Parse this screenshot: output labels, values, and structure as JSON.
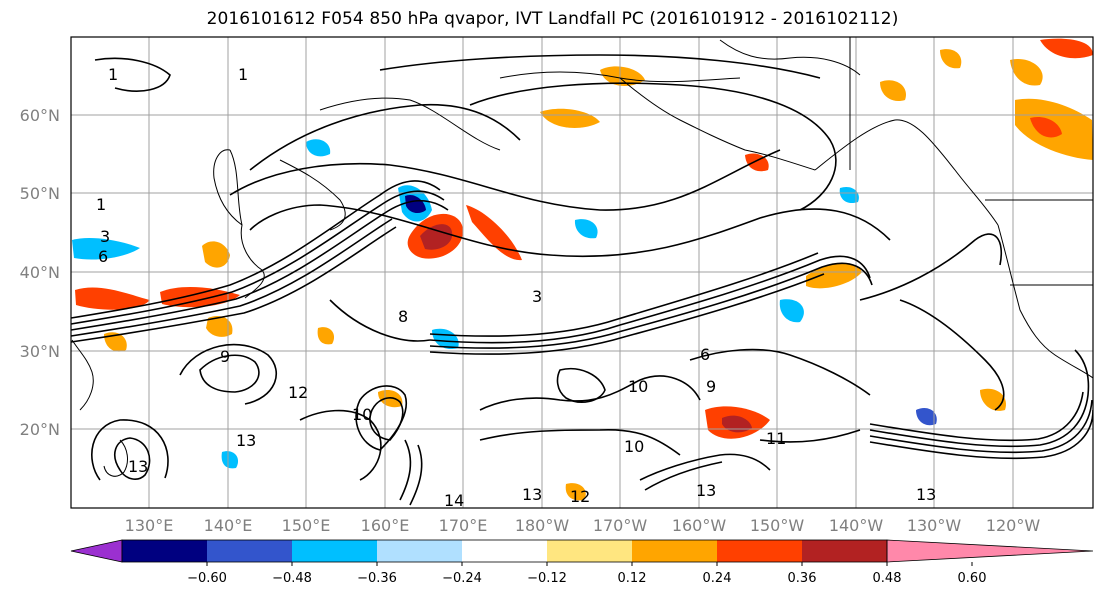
{
  "figure": {
    "title": "2016101612 F054 850 hPa qvapor, IVT Landfall PC (2016101912 - 2016102112)"
  },
  "map": {
    "lon_labels": [
      "130°E",
      "140°E",
      "150°E",
      "160°E",
      "170°E",
      "180°W",
      "170°W",
      "160°W",
      "150°W",
      "140°W",
      "130°W",
      "120°W"
    ],
    "lat_labels": [
      "60°N",
      "50°N",
      "40°N",
      "30°N",
      "20°N"
    ],
    "contour_labels": [
      "1",
      "1",
      "1",
      "3",
      "6",
      "3",
      "8",
      "9",
      "12",
      "10",
      "13",
      "14",
      "13",
      "12",
      "13",
      "13",
      "10",
      "11",
      "13",
      "9",
      "6",
      "10"
    ],
    "grid_color": "#a0a0a0"
  },
  "colorbar": {
    "ticks": [
      "−0.60",
      "−0.48",
      "−0.36",
      "−0.24",
      "−0.12",
      "0.12",
      "0.24",
      "0.36",
      "0.48",
      "0.60"
    ],
    "colors": [
      "#9b30d0",
      "#000080",
      "#3355cc",
      "#00bfff",
      "#b0e0ff",
      "#ffffff",
      "#ffe680",
      "#ffa500",
      "#ff4000",
      "#b22222",
      "#ff88aa"
    ]
  }
}
